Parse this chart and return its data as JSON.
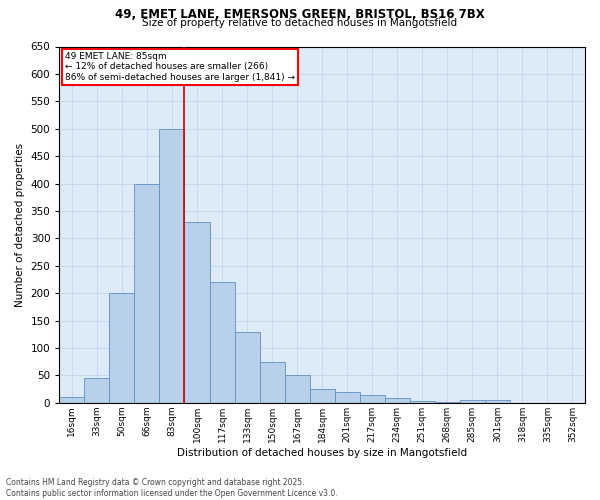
{
  "title_line1": "49, EMET LANE, EMERSONS GREEN, BRISTOL, BS16 7BX",
  "title_line2": "Size of property relative to detached houses in Mangotsfield",
  "xlabel": "Distribution of detached houses by size in Mangotsfield",
  "ylabel": "Number of detached properties",
  "footer_line1": "Contains HM Land Registry data © Crown copyright and database right 2025.",
  "footer_line2": "Contains public sector information licensed under the Open Government Licence v3.0.",
  "annotation_title": "49 EMET LANE: 85sqm",
  "annotation_line1": "← 12% of detached houses are smaller (266)",
  "annotation_line2": "86% of semi-detached houses are larger (1,841) →",
  "bar_categories": [
    "16sqm",
    "33sqm",
    "50sqm",
    "66sqm",
    "83sqm",
    "100sqm",
    "117sqm",
    "133sqm",
    "150sqm",
    "167sqm",
    "184sqm",
    "201sqm",
    "217sqm",
    "234sqm",
    "251sqm",
    "268sqm",
    "285sqm",
    "301sqm",
    "318sqm",
    "335sqm",
    "352sqm"
  ],
  "bar_values": [
    10,
    45,
    200,
    400,
    500,
    330,
    220,
    130,
    75,
    50,
    25,
    20,
    15,
    8,
    3,
    1,
    5,
    5,
    0,
    0,
    0
  ],
  "bar_color": "#b8d0ea",
  "bar_edge_color": "#6090c0",
  "grid_color": "#c8d8ec",
  "background_color": "#ddeaf7",
  "vline_color": "#cc0000",
  "vline_x": 4.5,
  "ylim": [
    0,
    650
  ],
  "yticks": [
    0,
    50,
    100,
    150,
    200,
    250,
    300,
    350,
    400,
    450,
    500,
    550,
    600,
    650
  ],
  "fig_width": 6.0,
  "fig_height": 5.0,
  "dpi": 100
}
